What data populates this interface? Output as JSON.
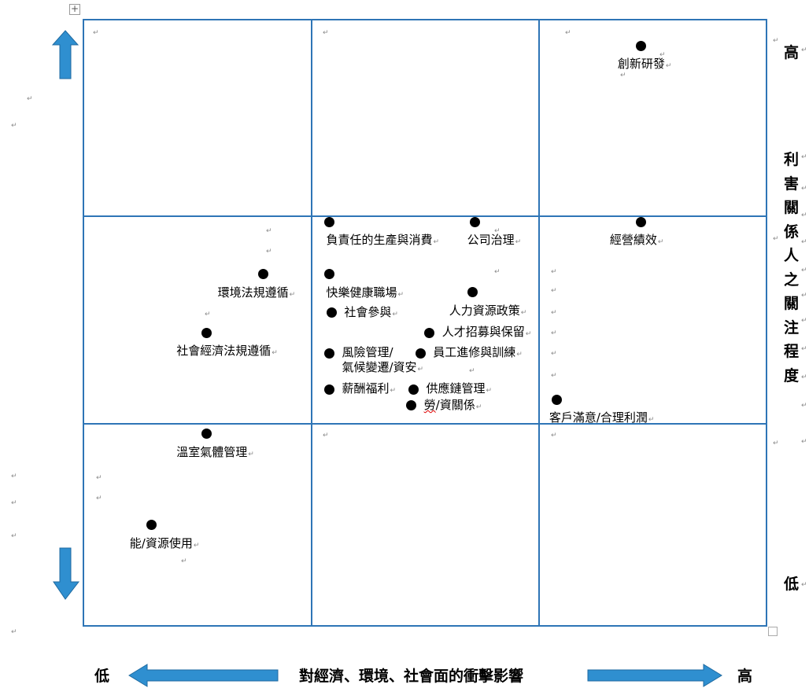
{
  "chart_data": {
    "type": "scatter",
    "title": "",
    "xlabel": "對經濟、環境、社會面的衝擊影響",
    "ylabel": "利害關係人之關注程度",
    "x_low_label": "低",
    "x_high_label": "高",
    "y_low_label": "低",
    "y_high_label": "高",
    "xlim": [
      0,
      3
    ],
    "ylim": [
      0,
      3
    ],
    "grid": "3x3",
    "points": [
      {
        "label": "創新研發",
        "x": 2.45,
        "y": 2.87
      },
      {
        "label": "負責任的生產與消費",
        "x": 1.08,
        "y": 2.0
      },
      {
        "label": "公司治理",
        "x": 1.72,
        "y": 2.0
      },
      {
        "label": "經營績效",
        "x": 2.45,
        "y": 2.0
      },
      {
        "label": "環境法規遵循",
        "x": 0.79,
        "y": 1.74
      },
      {
        "label": "快樂健康職場",
        "x": 1.08,
        "y": 1.74
      },
      {
        "label": "人力資源政策",
        "x": 1.71,
        "y": 1.65
      },
      {
        "label": "社會參與",
        "x": 1.09,
        "y": 1.55
      },
      {
        "label": "社會經濟法規遵循",
        "x": 0.54,
        "y": 1.45
      },
      {
        "label": "人才招募與保留",
        "x": 1.52,
        "y": 1.45
      },
      {
        "label": "風險管理/氣候變遷/資安",
        "x": 1.08,
        "y": 1.35
      },
      {
        "label": "員工進修與訓練",
        "x": 1.48,
        "y": 1.35
      },
      {
        "label": "薪酬福利",
        "x": 1.08,
        "y": 1.17
      },
      {
        "label": "供應鏈管理",
        "x": 1.45,
        "y": 1.17
      },
      {
        "label": "勞/資關係",
        "x": 1.44,
        "y": 1.09
      },
      {
        "label": "客戶滿意/合理利潤",
        "x": 2.08,
        "y": 1.12
      },
      {
        "label": "溫室氣體管理",
        "x": 0.54,
        "y": 0.95
      },
      {
        "label": "能/資源使用",
        "x": 0.3,
        "y": 0.5
      }
    ]
  },
  "arrow_color": "#2f8fd0",
  "grid_color": "#2e75b6",
  "paragraph_mark": "↵",
  "anchor_glyph": "+"
}
